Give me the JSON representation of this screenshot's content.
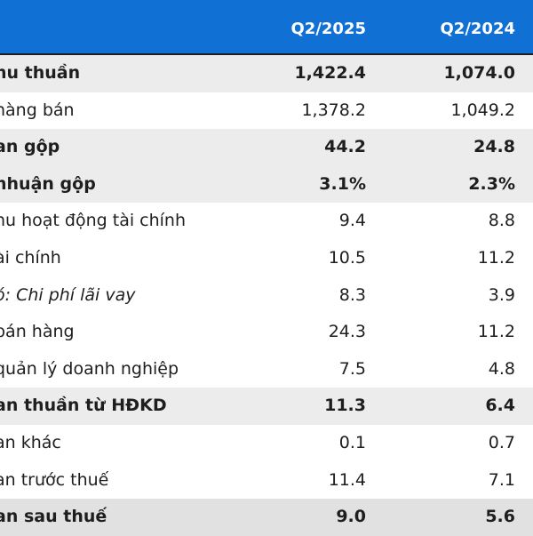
{
  "header": {
    "col1": "Q2/2025",
    "col2": "Q2/2024"
  },
  "rows": [
    {
      "label": "hu thuần",
      "v1": "1,422.4",
      "v2": "1,074.0",
      "style": "bold shade"
    },
    {
      "label": "hàng bán",
      "v1": "1,378.2",
      "v2": "1,049.2",
      "style": ""
    },
    {
      "label": "an gộp",
      "v1": "44.2",
      "v2": "24.8",
      "style": "bold shade"
    },
    {
      "label": "nhuận gộp",
      "v1": "3.1%",
      "v2": "2.3%",
      "style": "bold shade"
    },
    {
      "label": "hu hoạt động tài chính",
      "v1": "9.4",
      "v2": "8.8",
      "style": ""
    },
    {
      "label": "ài chính",
      "v1": "10.5",
      "v2": "11.2",
      "style": ""
    },
    {
      "label": "ó: Chi phí lãi vay",
      "v1": "8.3",
      "v2": "3.9",
      "style": "italic"
    },
    {
      "label": "bán hàng",
      "v1": "24.3",
      "v2": "11.2",
      "style": ""
    },
    {
      "label": "quản lý doanh nghiệp",
      "v1": "7.5",
      "v2": "4.8",
      "style": ""
    },
    {
      "label": "an thuần từ HĐKD",
      "v1": "11.3",
      "v2": "6.4",
      "style": "bold shade"
    },
    {
      "label": "an khác",
      "v1": "0.1",
      "v2": "0.7",
      "style": ""
    },
    {
      "label": "an trước thuế",
      "v1": "11.4",
      "v2": "7.1",
      "style": ""
    },
    {
      "label": "an sau thuế",
      "v1": "9.0",
      "v2": "5.6",
      "style": "bold shade-dark"
    }
  ]
}
